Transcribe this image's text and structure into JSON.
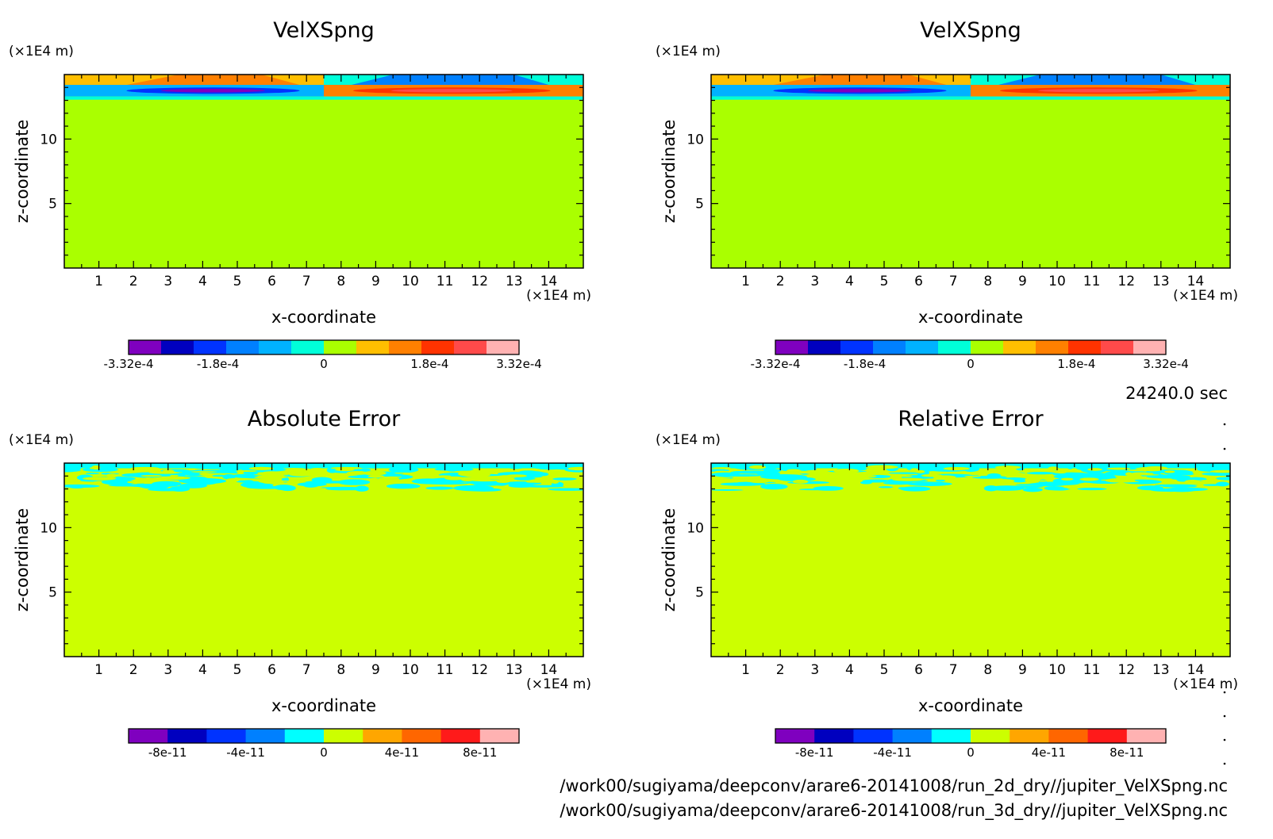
{
  "time_label": "24240.0 sec",
  "footer_lines": [
    "/work00/sugiyama/deepconv/arare6-20141008/run_2d_dry//jupiter_VelXSpng.nc",
    "/work00/sugiyama/deepconv/arare6-20141008/run_3d_dry//jupiter_VelXSpng.nc"
  ],
  "chart_data": [
    {
      "type": "heatmap",
      "title": "VelXSpng",
      "xlabel": "x-coordinate",
      "ylabel": "z-coordinate",
      "x_unit": "(×1E4 m)",
      "y_unit": "(×1E4 m)",
      "xlim": [
        0,
        15
      ],
      "ylim": [
        0,
        15
      ],
      "x_ticks": [
        1,
        2,
        3,
        4,
        5,
        6,
        7,
        8,
        9,
        10,
        11,
        12,
        13,
        14
      ],
      "y_ticks": [
        5,
        10
      ],
      "field": "dipole",
      "colorbar": {
        "colors": [
          "#7f00bf",
          "#0000bf",
          "#0033ff",
          "#0080ff",
          "#00b2ff",
          "#00ffd9",
          "#aaff00",
          "#ffbf00",
          "#ff8000",
          "#ff3300",
          "#ff4a4a",
          "#ffb2b2"
        ],
        "tick_labels": [
          "-3.32e-4",
          "-1.8e-4",
          "0",
          "1.8e-4",
          "3.32e-4"
        ],
        "tick_values": [
          -0.000332,
          -0.00018,
          0,
          0.00018,
          0.000332
        ],
        "range": [
          -0.000332,
          0.000332
        ]
      }
    },
    {
      "type": "heatmap",
      "title": "VelXSpng",
      "xlabel": "x-coordinate",
      "ylabel": "z-coordinate",
      "x_unit": "(×1E4 m)",
      "y_unit": "(×1E4 m)",
      "xlim": [
        0,
        15
      ],
      "ylim": [
        0,
        15
      ],
      "x_ticks": [
        1,
        2,
        3,
        4,
        5,
        6,
        7,
        8,
        9,
        10,
        11,
        12,
        13,
        14
      ],
      "y_ticks": [
        5,
        10
      ],
      "field": "dipole",
      "colorbar": {
        "colors": [
          "#7f00bf",
          "#0000bf",
          "#0033ff",
          "#0080ff",
          "#00b2ff",
          "#00ffd9",
          "#aaff00",
          "#ffbf00",
          "#ff8000",
          "#ff3300",
          "#ff4a4a",
          "#ffb2b2"
        ],
        "tick_labels": [
          "-3.32e-4",
          "-1.8e-4",
          "0",
          "1.8e-4",
          "3.32e-4"
        ],
        "tick_values": [
          -0.000332,
          -0.00018,
          0,
          0.00018,
          0.000332
        ],
        "range": [
          -0.000332,
          0.000332
        ]
      }
    },
    {
      "type": "heatmap",
      "title": "Absolute Error",
      "xlabel": "x-coordinate",
      "ylabel": "z-coordinate",
      "x_unit": "(×1E4 m)",
      "y_unit": "(×1E4 m)",
      "xlim": [
        0,
        15
      ],
      "ylim": [
        0,
        15
      ],
      "x_ticks": [
        1,
        2,
        3,
        4,
        5,
        6,
        7,
        8,
        9,
        10,
        11,
        12,
        13,
        14
      ],
      "y_ticks": [
        5,
        10
      ],
      "field": "noise",
      "colorbar": {
        "colors": [
          "#7f00bf",
          "#0000bf",
          "#0033ff",
          "#0080ff",
          "#00ffff",
          "#ccff00",
          "#ffa600",
          "#ff6600",
          "#ff1a1a",
          "#ffb2b2"
        ],
        "tick_labels": [
          "-8e-11",
          "-4e-11",
          "0",
          "4e-11",
          "8e-11"
        ],
        "tick_values": [
          -8e-11,
          -4e-11,
          0,
          4e-11,
          8e-11
        ],
        "range": [
          -1e-10,
          1e-10
        ]
      }
    },
    {
      "type": "heatmap",
      "title": "Relative Error",
      "xlabel": "x-coordinate",
      "ylabel": "z-coordinate",
      "x_unit": "(×1E4 m)",
      "y_unit": "(×1E4 m)",
      "xlim": [
        0,
        15
      ],
      "ylim": [
        0,
        15
      ],
      "x_ticks": [
        1,
        2,
        3,
        4,
        5,
        6,
        7,
        8,
        9,
        10,
        11,
        12,
        13,
        14
      ],
      "y_ticks": [
        5,
        10
      ],
      "field": "noise",
      "colorbar": {
        "colors": [
          "#7f00bf",
          "#0000bf",
          "#0033ff",
          "#0080ff",
          "#00ffff",
          "#ccff00",
          "#ffa600",
          "#ff6600",
          "#ff1a1a",
          "#ffb2b2"
        ],
        "tick_labels": [
          "-8e-11",
          "-4e-11",
          "0",
          "4e-11",
          "8e-11"
        ],
        "tick_values": [
          -8e-11,
          -4e-11,
          0,
          4e-11,
          8e-11
        ],
        "range": [
          -1e-10,
          1e-10
        ]
      }
    }
  ]
}
